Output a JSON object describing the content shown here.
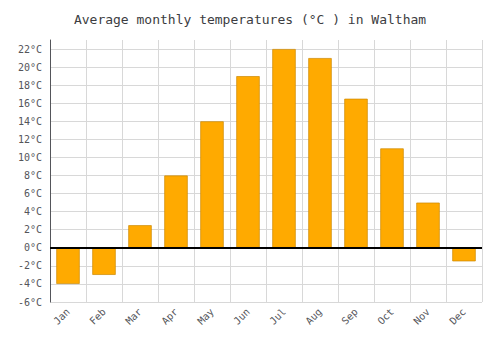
{
  "chart_data": {
    "type": "bar",
    "title": "Average monthly temperatures (°C ) in Waltham",
    "categories": [
      "Jan",
      "Feb",
      "Mar",
      "Apr",
      "May",
      "Jun",
      "Jul",
      "Aug",
      "Sep",
      "Oct",
      "Nov",
      "Dec"
    ],
    "values": [
      -4.0,
      -3.0,
      2.5,
      8.0,
      14.0,
      19.0,
      22.0,
      21.0,
      16.5,
      11.0,
      5.0,
      -1.5
    ],
    "color": "#FFAA00",
    "ylim": [
      -6,
      23
    ],
    "yticks": [
      {
        "value": -6,
        "label": "-6°C"
      },
      {
        "value": -4,
        "label": "-4°C"
      },
      {
        "value": -2,
        "label": "-2°C"
      },
      {
        "value": 0,
        "label": "0°C"
      },
      {
        "value": 2,
        "label": "2°C"
      },
      {
        "value": 4,
        "label": "4°C"
      },
      {
        "value": 6,
        "label": "6°C"
      },
      {
        "value": 8,
        "label": "8°C"
      },
      {
        "value": 10,
        "label": "10°C"
      },
      {
        "value": 12,
        "label": "12°C"
      },
      {
        "value": 14,
        "label": "14°C"
      },
      {
        "value": 16,
        "label": "16°C"
      },
      {
        "value": 18,
        "label": "18°C"
      },
      {
        "value": 20,
        "label": "20°C"
      },
      {
        "value": 22,
        "label": "22°C"
      }
    ],
    "grid": true
  }
}
